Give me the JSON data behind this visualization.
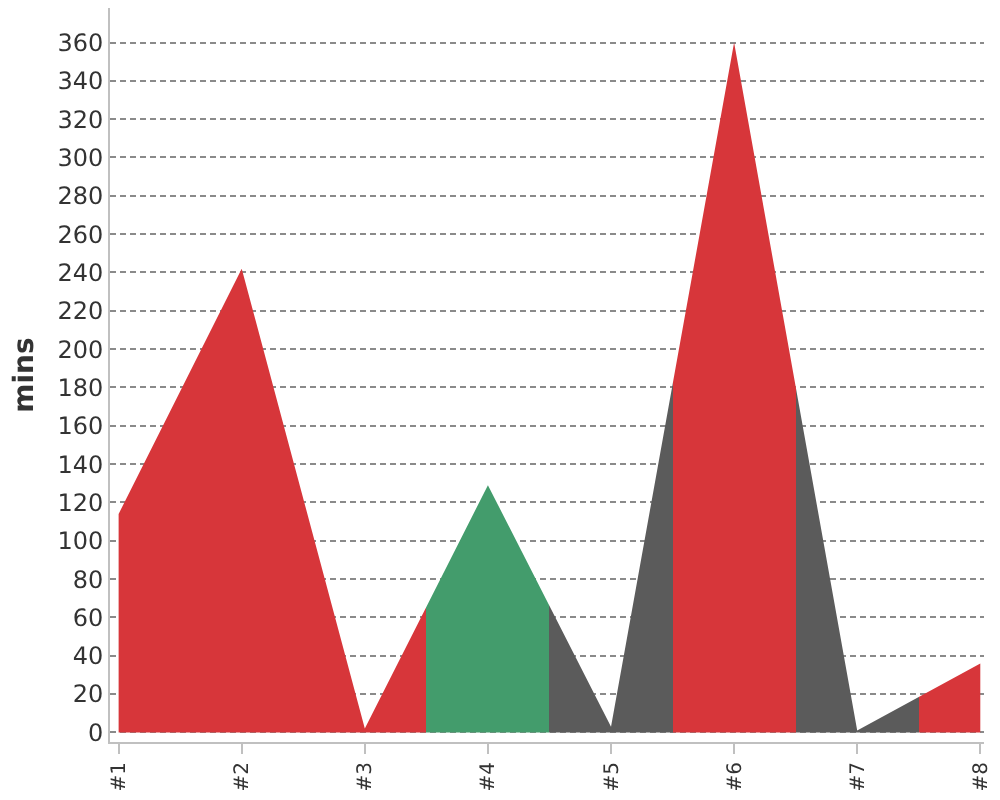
{
  "chart_data": {
    "type": "area",
    "ylabel": "mins",
    "categories": [
      "#1",
      "#2",
      "#3",
      "#4",
      "#5",
      "#6",
      "#7",
      "#8"
    ],
    "values": [
      114,
      242,
      2,
      129,
      3,
      360,
      1,
      36
    ],
    "colors": [
      "#d7363a",
      "#d7363a",
      "#d7363a",
      "#439c6c",
      "#5b5b5b",
      "#d7363a",
      "#5b5b5b",
      "#d7363a"
    ],
    "ylim": [
      -5,
      378
    ],
    "yticks": [
      0,
      20,
      40,
      60,
      80,
      100,
      120,
      140,
      160,
      180,
      200,
      220,
      240,
      260,
      280,
      300,
      320,
      340,
      360
    ],
    "grid": "y"
  }
}
